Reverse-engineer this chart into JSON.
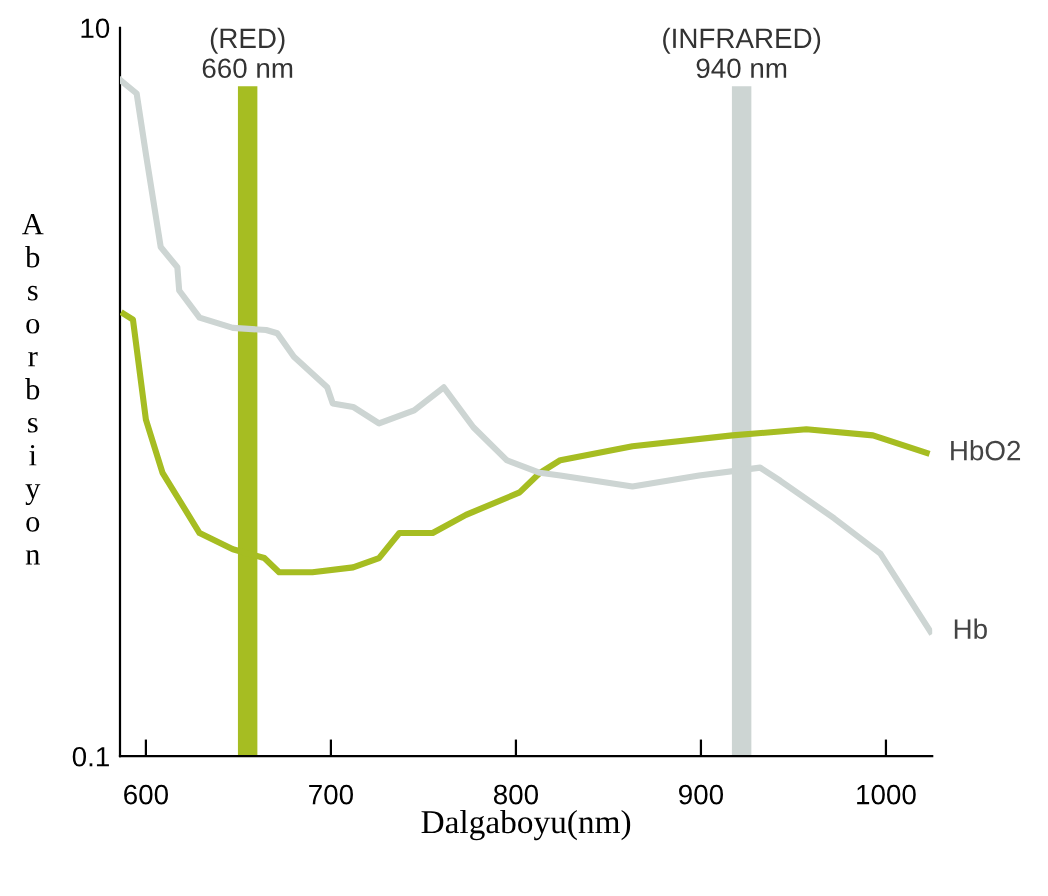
{
  "chart_data": {
    "type": "line",
    "xlabel": "Dalgaboyu(nm)",
    "ylabel": "Absorbsiyon",
    "log": "y",
    "xlim": [
      586,
      1025
    ],
    "xticks": [
      600,
      700,
      800,
      900,
      1000
    ],
    "ylim": [
      0.1,
      10
    ],
    "yticks": [
      0.1,
      10
    ],
    "grid": false,
    "legend": false,
    "marker": "none",
    "line_style": "solid",
    "series": [
      {
        "name": "HbO2",
        "color": "#a6bd22",
        "x": [
          588,
          593,
          600,
          609,
          629,
          647,
          664,
          672,
          690,
          712,
          726,
          737,
          755,
          773,
          802,
          813,
          824,
          863,
          917,
          957,
          993,
          1022
        ],
        "values": [
          1.64,
          1.58,
          0.84,
          0.6,
          0.41,
          0.37,
          0.35,
          0.32,
          0.32,
          0.33,
          0.35,
          0.41,
          0.41,
          0.46,
          0.53,
          0.6,
          0.65,
          0.71,
          0.76,
          0.79,
          0.76,
          0.68
        ]
      },
      {
        "name": "Hb",
        "color": "#cdd5d3",
        "x": [
          586,
          595,
          600,
          608,
          617,
          618,
          629,
          647,
          665,
          671,
          680,
          698,
          701,
          712,
          726,
          745,
          761,
          777,
          795,
          813,
          824,
          863,
          899,
          932,
          943,
          972,
          997,
          1024
        ],
        "values": [
          7.2,
          6.6,
          4.5,
          2.5,
          2.2,
          1.9,
          1.6,
          1.5,
          1.48,
          1.45,
          1.25,
          1.03,
          0.93,
          0.91,
          0.82,
          0.89,
          1.03,
          0.8,
          0.65,
          0.6,
          0.59,
          0.55,
          0.59,
          0.62,
          0.57,
          0.45,
          0.36,
          0.22
        ]
      }
    ],
    "ref_lines": [
      {
        "axis": "x",
        "value": 655,
        "label": "(RED)\n660 nm",
        "color": "#a6bd22"
      },
      {
        "axis": "x",
        "value": 922,
        "label": "(INFRARED)\n940 nm",
        "color": "#cdd5d3"
      }
    ]
  }
}
